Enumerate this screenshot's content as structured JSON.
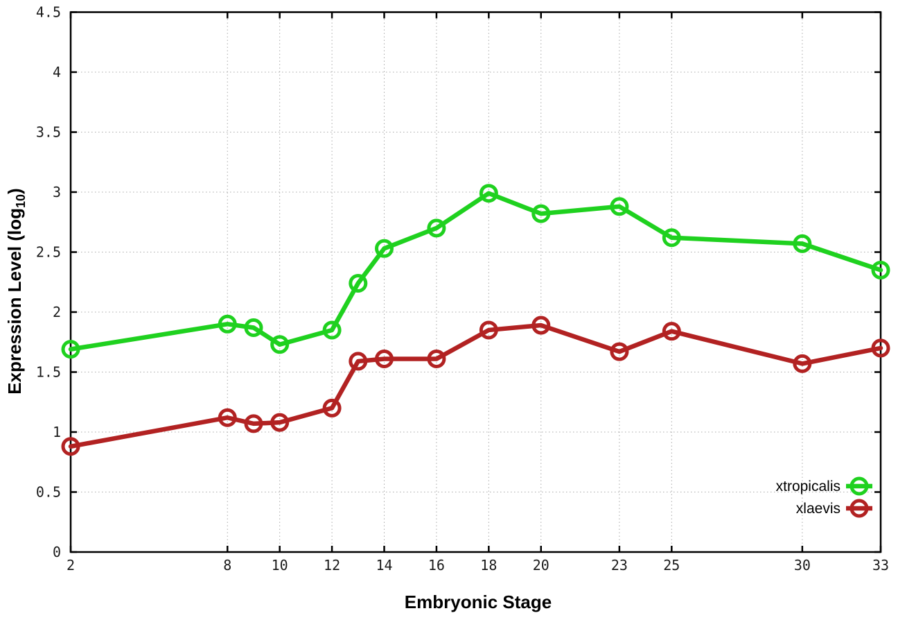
{
  "chart_data": {
    "type": "line",
    "title": "",
    "xlabel": "Embryonic Stage",
    "ylabel": "Expression Level (log10)",
    "ylabel_parts": {
      "pre": "Expression Level (log",
      "sub": "10",
      "post": ")"
    },
    "x": [
      2,
      8,
      9,
      10,
      12,
      13,
      14,
      16,
      18,
      20,
      23,
      25,
      30,
      33
    ],
    "series": [
      {
        "name": "xtropicalis",
        "color": "#1fd11f",
        "values": [
          1.69,
          1.9,
          1.87,
          1.73,
          1.85,
          2.24,
          2.53,
          2.7,
          2.99,
          2.82,
          2.88,
          2.62,
          2.57,
          2.35
        ]
      },
      {
        "name": "xlaevis",
        "color": "#b22222",
        "values": [
          0.88,
          1.12,
          1.07,
          1.08,
          1.2,
          1.59,
          1.61,
          1.61,
          1.85,
          1.89,
          1.67,
          1.84,
          1.57,
          1.7
        ]
      }
    ],
    "xlim": [
      2,
      33
    ],
    "ylim": [
      0,
      4.5
    ],
    "xticks": [
      2,
      8,
      10,
      12,
      14,
      16,
      18,
      20,
      23,
      25,
      30,
      33
    ],
    "yticks": [
      0,
      0.5,
      1,
      1.5,
      2,
      2.5,
      3,
      3.5,
      4,
      4.5
    ],
    "grid": true,
    "grid_color": "#a8a8a8",
    "axis_color": "#000000",
    "legend_position": "bottom-right-inside",
    "marker": "open-circle"
  }
}
